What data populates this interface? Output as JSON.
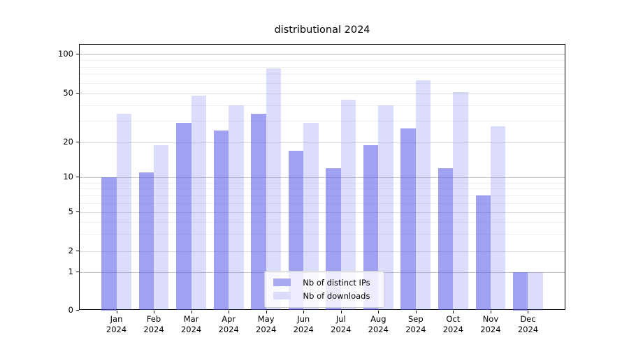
{
  "chart_data": {
    "type": "bar",
    "title": "distributional 2024",
    "months": [
      "Jan",
      "Feb",
      "Mar",
      "Apr",
      "May",
      "Jun",
      "Jul",
      "Aug",
      "Sep",
      "Oct",
      "Nov",
      "Dec"
    ],
    "year": "2024",
    "series": [
      {
        "name": "Nb of distinct IPs",
        "color": "#a9a9f3",
        "fill": "rgba(88,88,235,0.56)",
        "values": [
          10,
          11,
          29,
          25,
          34,
          17,
          12,
          19,
          26,
          12,
          7,
          1
        ]
      },
      {
        "name": "Nb of downloads",
        "color": "#dcdcfa",
        "fill": "rgba(88,88,235,0.21)",
        "values": [
          34,
          19,
          48,
          40,
          78,
          29,
          44,
          40,
          63,
          51,
          27,
          1
        ]
      }
    ],
    "yticks": [
      0,
      1,
      2,
      5,
      10,
      20,
      50,
      100
    ],
    "ylim": [
      0,
      120
    ],
    "xlabel": "",
    "ylabel": "",
    "scale": "symlog",
    "grid": true,
    "legend_position": "lower center",
    "colors": {
      "grid_major_decade": "#c4c4c4",
      "grid_major": "#dedede",
      "grid_minor": "#efefef",
      "spine": "#000000"
    }
  }
}
